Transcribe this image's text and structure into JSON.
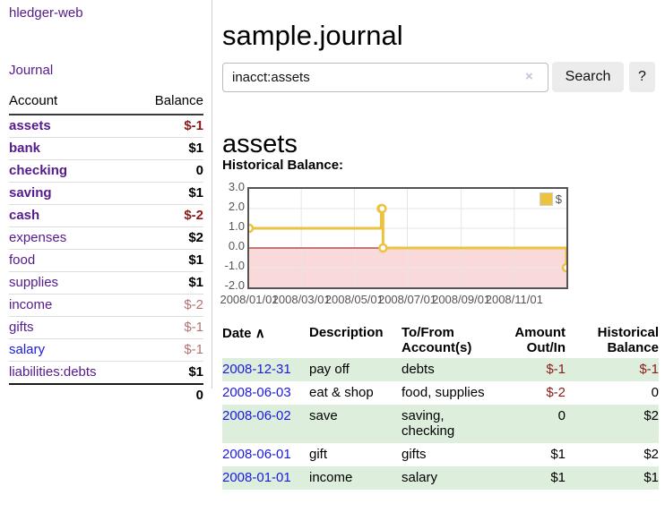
{
  "app": {
    "title": "hledger-web"
  },
  "nav": {
    "journal": "Journal"
  },
  "sidebar": {
    "columns": {
      "account": "Account",
      "balance": "Balance"
    },
    "accounts": [
      {
        "name": "assets",
        "balance": "$-1"
      },
      {
        "name": "bank",
        "balance": "$1"
      },
      {
        "name": "checking",
        "balance": "0"
      },
      {
        "name": "saving",
        "balance": "$1"
      },
      {
        "name": "cash",
        "balance": "$-2"
      },
      {
        "name": "expenses",
        "balance": "$2"
      },
      {
        "name": "food",
        "balance": "$1"
      },
      {
        "name": "supplies",
        "balance": "$1"
      },
      {
        "name": "income",
        "balance": "$-2"
      },
      {
        "name": "gifts",
        "balance": "$-1"
      },
      {
        "name": "salary",
        "balance": "$-1"
      },
      {
        "name": "liabilities:debts",
        "balance": "$1"
      }
    ],
    "total": "0"
  },
  "main": {
    "title": "sample.journal",
    "search": {
      "value": "inacct:assets",
      "clear_icon": "×",
      "search_label": "Search",
      "help_label": "?"
    },
    "account_title": "assets",
    "chart_heading": "Historical Balance:"
  },
  "chart_data": {
    "type": "line",
    "step": true,
    "title": "Historical Balance",
    "series": [
      {
        "name": "$",
        "color": "#edc240",
        "points": [
          [
            "2008-01-01",
            1
          ],
          [
            "2008-06-01",
            2
          ],
          [
            "2008-06-02",
            2
          ],
          [
            "2008-06-03",
            0
          ],
          [
            "2008-12-31",
            -1
          ]
        ]
      }
    ],
    "x_range": [
      "2008-01-01",
      "2008-12-31"
    ],
    "x_tick_labels": [
      "2008/01/01",
      "2008/03/01",
      "2008/05/01",
      "2008/07/01",
      "2008/09/01",
      "2008/11/01"
    ],
    "y_tick_labels": [
      "3.0",
      "2.0",
      "1.0",
      "0.0",
      "-1.0",
      "-2.0"
    ],
    "ylim": [
      -2,
      3
    ],
    "grid": true,
    "legend_position": "top-right",
    "gridline_color": "#e6e6e6",
    "negative_region_fill": "#f9d9d9",
    "zero_line_color": "#8b0000"
  },
  "register": {
    "sort_icon": "∧",
    "headers": {
      "date": "Date",
      "description": "Description",
      "tofrom": "To/From Account(s)",
      "amount": "Amount Out/In",
      "balance": "Historical Balance"
    },
    "rows": [
      {
        "date": "2008-12-31",
        "description": "pay off",
        "accounts": "debts",
        "amount": "$-1",
        "balance": "$-1"
      },
      {
        "date": "2008-06-03",
        "description": "eat & shop",
        "accounts": "food, supplies",
        "amount": "$-2",
        "balance": "0"
      },
      {
        "date": "2008-06-02",
        "description": "save",
        "accounts": "saving, checking",
        "amount": "0",
        "balance": "$2"
      },
      {
        "date": "2008-06-01",
        "description": "gift",
        "accounts": "gifts",
        "amount": "$1",
        "balance": "$2"
      },
      {
        "date": "2008-01-01",
        "description": "income",
        "accounts": "salary",
        "amount": "$1",
        "balance": "$1"
      }
    ]
  },
  "colors": {
    "accent_purple": "#551a8b",
    "link_blue": "#1a1ae0",
    "negative_strong": "#8b1a1a",
    "negative_soft": "#b47272",
    "row_green": "#ddeedd",
    "series_yellow": "#edc240"
  }
}
